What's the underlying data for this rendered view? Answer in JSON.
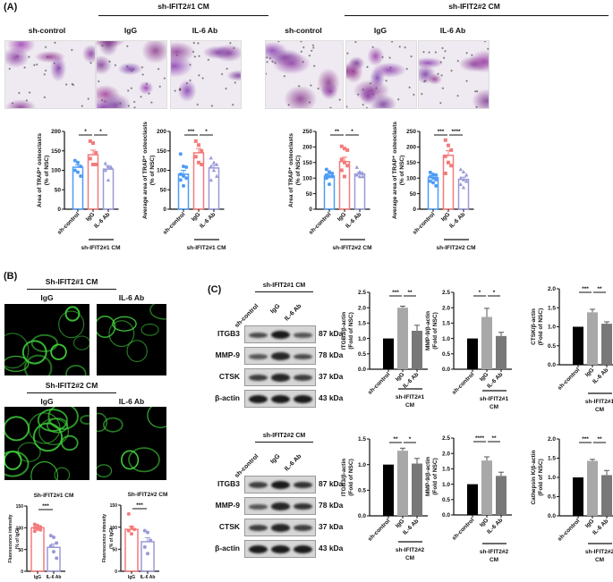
{
  "panels": {
    "a": "(A)",
    "b": "(B)",
    "c": "(C)"
  },
  "panelA": {
    "group1": "sh-IFIT2#1 CM",
    "group2": "sh-IFIT2#2 CM",
    "columns": [
      "sh-control",
      "IgG",
      "IL-6 Ab",
      "sh-control",
      "IgG",
      "IL-6 Ab"
    ]
  },
  "panelB": {
    "group1": "Sh-IFIT2#1 CM",
    "group2": "Sh-IFIT2#2 CM",
    "columns": [
      "IgG",
      "IL-6 Ab",
      "IgG",
      "IL-6 Ab"
    ]
  },
  "panelC": {
    "blot1_title": "sh-IFIT2#1 CM",
    "blot2_title": "sh-IFIT2#2 CM",
    "lanes": [
      "sh-control",
      "IgG",
      "IL-6 Ab"
    ],
    "rows": [
      {
        "name": "ITGB3",
        "kda": "87 kDa"
      },
      {
        "name": "MMP-9",
        "kda": "78 kDa"
      },
      {
        "name": "CTSK",
        "kda": "37 kDa"
      },
      {
        "name": "β-actin",
        "kda": "43 kDa"
      }
    ]
  },
  "colors": {
    "blue": "#4f9cf5",
    "red": "#f47b7b",
    "purple": "#9a9ad8",
    "black": "#000000",
    "lightgray": "#a8a8a8",
    "darkgray": "#787878"
  },
  "chart_data": [
    {
      "id": "A1",
      "type": "bar",
      "style": "dots",
      "title": "",
      "ylabel": [
        "Area of TRAP⁺ osteoclasts",
        "(% of NSC)"
      ],
      "ylim": [
        0,
        200
      ],
      "yticks": [
        "0",
        "50",
        "100",
        "150",
        "200"
      ],
      "categories": [
        "sh-control",
        "IgG",
        "IL-6 Ab"
      ],
      "group_label": [
        "sh-IFIT2#1 CM"
      ],
      "values": [
        108,
        140,
        103
      ],
      "errors": [
        6,
        12,
        8
      ],
      "points": [
        [
          125,
          120,
          110,
          100,
          95,
          85
        ],
        [
          175,
          170,
          145,
          130,
          115,
          115
        ],
        [
          118,
          110,
          108,
          100,
          75
        ]
      ],
      "significance": [
        "*",
        "*"
      ]
    },
    {
      "id": "A2",
      "type": "bar",
      "style": "dots",
      "title": "",
      "ylabel": [
        "Average area of TRAP⁺ osteoclasts",
        "(% of NSC)"
      ],
      "ylim": [
        0,
        200
      ],
      "yticks": [
        "0",
        "50",
        "100",
        "150",
        "200"
      ],
      "categories": [
        "sh-control",
        "IgG",
        "IL-6 Ab"
      ],
      "group_label": [
        "sh-IFIT2#1 CM"
      ],
      "values": [
        90,
        145,
        106
      ],
      "errors": [
        10,
        11,
        7
      ],
      "points": [
        [
          142,
          110,
          108,
          90,
          85,
          80,
          75,
          60
        ],
        [
          175,
          165,
          150,
          135,
          120,
          115
        ],
        [
          132,
          120,
          115,
          110,
          100,
          85,
          75
        ]
      ],
      "significance": [
        "***",
        "*"
      ]
    },
    {
      "id": "A3",
      "type": "bar",
      "style": "dots",
      "title": "",
      "ylabel": [
        "Area of TRAP⁺ osteoclasts",
        "(% of NSC)"
      ],
      "ylim": [
        0,
        250
      ],
      "yticks": [
        "0",
        "50",
        "100",
        "150",
        "200",
        "250"
      ],
      "categories": [
        "sh-control",
        "IgG",
        "IL-6 Ab"
      ],
      "group_label": [
        "sh-IFIT2#2 CM"
      ],
      "values": [
        107,
        153,
        113
      ],
      "errors": [
        7,
        14,
        6
      ],
      "points": [
        [
          128,
          120,
          115,
          110,
          105,
          105,
          100,
          80
        ],
        [
          202,
          195,
          190,
          160,
          150,
          140,
          125,
          105
        ],
        [
          135,
          120,
          115,
          110,
          105,
          105
        ]
      ],
      "significance": [
        "**",
        "*"
      ]
    },
    {
      "id": "A4",
      "type": "bar",
      "style": "dots",
      "title": "",
      "ylabel": [
        "Average area of TRAP⁺ osteoclasts",
        "(% of NSC)"
      ],
      "ylim": [
        0,
        250
      ],
      "yticks": [
        "0",
        "50",
        "100",
        "150",
        "200",
        "250"
      ],
      "categories": [
        "sh-control",
        "IgG",
        "IL-6 Ab"
      ],
      "group_label": [
        "sh-IFIT2#2 CM"
      ],
      "values": [
        102,
        173,
        96
      ],
      "errors": [
        6,
        15,
        7
      ],
      "points": [
        [
          118,
          112,
          110,
          105,
          100,
          95,
          90,
          85,
          75
        ],
        [
          222,
          205,
          190,
          170,
          150,
          140,
          115
        ],
        [
          128,
          120,
          110,
          100,
          95,
          90,
          80,
          70
        ]
      ],
      "significance": [
        "***",
        "****"
      ]
    },
    {
      "id": "B1",
      "type": "bar",
      "style": "dots",
      "title": "Sh-IFIT2#1 CM",
      "ylabel": [
        "Fluorescence intensity",
        "(% of IgG)"
      ],
      "ylim": [
        0,
        150
      ],
      "yticks": [
        "0",
        "50",
        "100",
        "150"
      ],
      "categories": [
        "IgG",
        "IL-6 Ab"
      ],
      "group_label": [],
      "values": [
        100,
        55
      ],
      "errors": [
        3,
        8
      ],
      "points": [
        [
          108,
          105,
          102,
          100,
          97,
          95,
          92
        ],
        [
          82,
          78,
          65,
          58,
          45,
          30
        ]
      ],
      "significance": [
        "***"
      ]
    },
    {
      "id": "B2",
      "type": "bar",
      "style": "dots",
      "title": "Sh-IFIT2#2 CM",
      "ylabel": [
        "Fluorescence intensity",
        "(% of IgG)"
      ],
      "ylim": [
        0,
        150
      ],
      "yticks": [
        "0",
        "50",
        "100",
        "150"
      ],
      "categories": [
        "IgG",
        "IL-6 Ab"
      ],
      "group_label": [],
      "values": [
        95,
        67
      ],
      "errors": [
        7,
        9
      ],
      "points": [
        [
          130,
          100,
          95,
          92,
          85
        ],
        [
          92,
          88,
          70,
          55,
          40
        ]
      ],
      "significance": [
        "***"
      ]
    },
    {
      "id": "C1",
      "type": "bar",
      "style": "solid",
      "title": "",
      "ylabel": [
        "ITGB3/β-actin",
        "(Fold of NSC)"
      ],
      "ylim": [
        0,
        2.5
      ],
      "yticks": [
        "0.0",
        "0.5",
        "1.0",
        "1.5",
        "2.0",
        "2.5"
      ],
      "categories": [
        "sh-control",
        "IgG",
        "IL-6 Ab"
      ],
      "group_label": [
        "sh-IFIT2#1",
        "CM"
      ],
      "values": [
        1.0,
        2.0,
        1.25
      ],
      "errors": [
        0,
        0.05,
        0.18
      ],
      "significance": [
        "***",
        "**"
      ]
    },
    {
      "id": "C2",
      "type": "bar",
      "style": "solid",
      "title": "",
      "ylabel": [
        "MMP-9/β-actin",
        "(Fold of NSC)"
      ],
      "ylim": [
        0,
        2.5
      ],
      "yticks": [
        "0.0",
        "0.5",
        "1.0",
        "1.5",
        "2.0",
        "2.5"
      ],
      "categories": [
        "sh-control",
        "IgG",
        "IL-6 Ab"
      ],
      "group_label": [
        "sh-IFIT2#1",
        "CM"
      ],
      "values": [
        1.0,
        1.7,
        1.08
      ],
      "errors": [
        0,
        0.28,
        0.12
      ],
      "significance": [
        "*",
        "*"
      ]
    },
    {
      "id": "C3",
      "type": "bar",
      "style": "solid",
      "title": "",
      "ylabel": [
        "CTSK/β-actin",
        "(Fold of NSC)"
      ],
      "ylim": [
        0,
        2.0
      ],
      "yticks": [
        "0.0",
        "0.5",
        "1.0",
        "1.5",
        "2.0"
      ],
      "categories": [
        "sh-control",
        "IgG",
        "IL-6 Ab"
      ],
      "group_label": [
        "sh-IFIT2#1",
        "CM"
      ],
      "values": [
        1.0,
        1.38,
        1.08
      ],
      "errors": [
        0,
        0.08,
        0.05
      ],
      "significance": [
        "***",
        "**"
      ]
    },
    {
      "id": "C4",
      "type": "bar",
      "style": "solid",
      "title": "",
      "ylabel": [
        "ITGB3/β-actin",
        "(Fold of NSC)"
      ],
      "ylim": [
        0,
        1.5
      ],
      "yticks": [
        "0.0",
        "0.5",
        "1.0",
        "1.5"
      ],
      "categories": [
        "sh-control",
        "IgG",
        "IL-6 Ab"
      ],
      "group_label": [
        "sh-IFIT2#2",
        "CM"
      ],
      "values": [
        1.0,
        1.27,
        1.02
      ],
      "errors": [
        0,
        0.05,
        0.1
      ],
      "significance": [
        "**",
        "*"
      ]
    },
    {
      "id": "C5",
      "type": "bar",
      "style": "solid",
      "title": "",
      "ylabel": [
        "MMP-9/β-actin",
        "(Fold of NSC)"
      ],
      "ylim": [
        0,
        2.5
      ],
      "yticks": [
        "0.0",
        "0.5",
        "1.0",
        "1.5",
        "2.0",
        "2.5"
      ],
      "categories": [
        "sh-control",
        "IgG",
        "IL-6 Ab"
      ],
      "group_label": [
        "sh-IFIT2#2",
        "CM"
      ],
      "values": [
        1.0,
        1.77,
        1.27
      ],
      "errors": [
        0,
        0.12,
        0.12
      ],
      "significance": [
        "****",
        "**"
      ]
    },
    {
      "id": "C6",
      "type": "bar",
      "style": "solid",
      "title": "",
      "ylabel": [
        "Cathepsin K/β-actin",
        "(Fold of NSC)"
      ],
      "ylim": [
        0,
        2.0
      ],
      "yticks": [
        "0.0",
        "0.5",
        "1.0",
        "1.5",
        "2.0"
      ],
      "categories": [
        "sh-control",
        "IgG",
        "IL-6 Ab"
      ],
      "group_label": [
        "sh-IFIT2#2",
        "CM"
      ],
      "values": [
        1.0,
        1.43,
        1.06
      ],
      "errors": [
        0,
        0.04,
        0.12
      ],
      "significance": [
        "***",
        "**"
      ]
    }
  ]
}
